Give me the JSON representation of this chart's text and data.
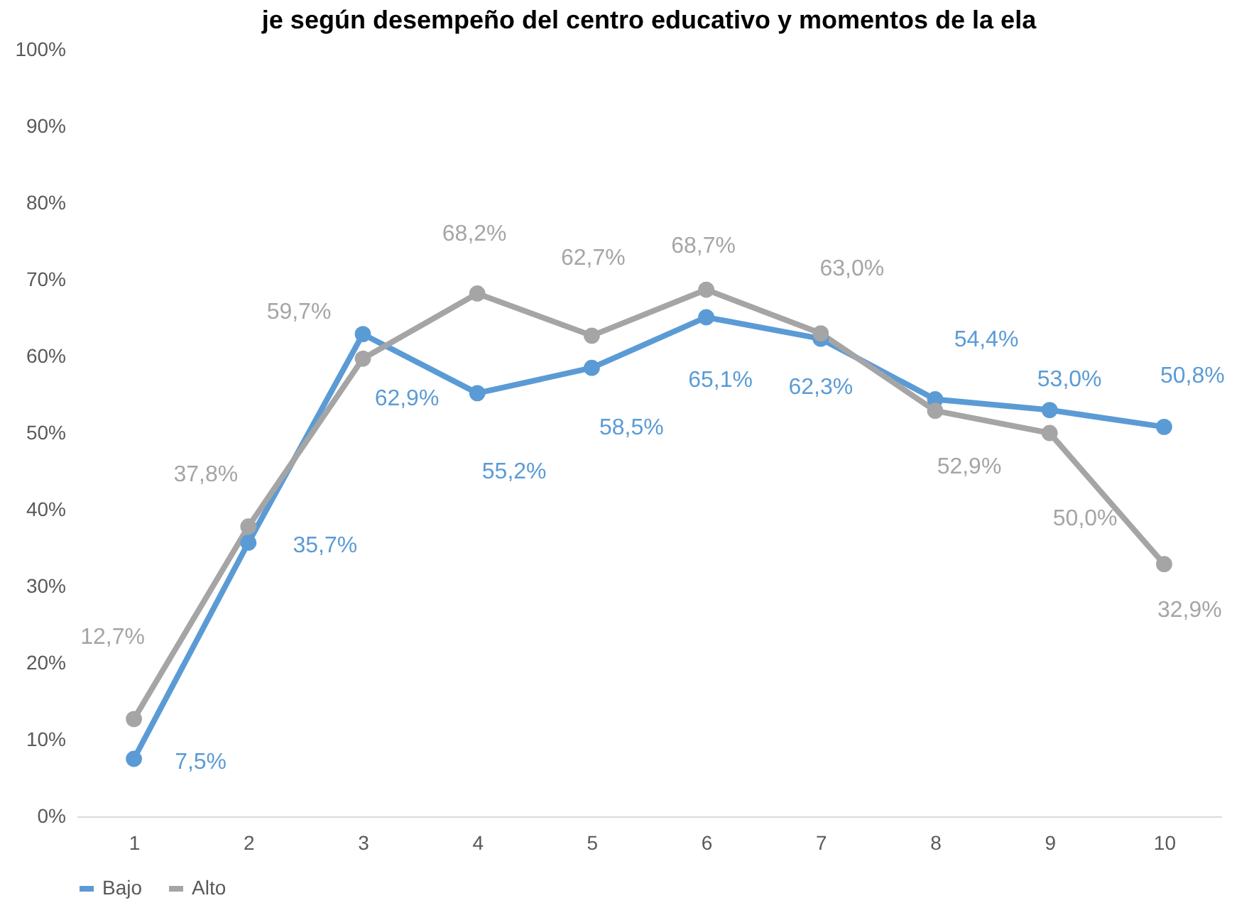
{
  "chart_data": {
    "type": "line",
    "title": "je según desempeño del centro educativo y momentos de la ela",
    "categories": [
      "1",
      "2",
      "3",
      "4",
      "5",
      "6",
      "7",
      "8",
      "9",
      "10"
    ],
    "series": [
      {
        "name": "Bajo",
        "color": "#5b9bd5",
        "values": [
          7.5,
          35.7,
          62.9,
          55.2,
          58.5,
          65.1,
          62.3,
          54.4,
          53.0,
          50.8
        ],
        "value_labels": [
          "7,5%",
          "35,7%",
          "62,9%",
          "55,2%",
          "58,5%",
          "65,1%",
          "62,3%",
          "54,4%",
          "53,0%",
          "50,8%"
        ]
      },
      {
        "name": "Alto",
        "color": "#a5a5a5",
        "values": [
          12.7,
          37.8,
          59.7,
          68.2,
          62.7,
          68.7,
          63.0,
          52.9,
          50.0,
          32.9
        ],
        "value_labels": [
          "12,7%",
          "37,8%",
          "59,7%",
          "68,2%",
          "62,7%",
          "68,7%",
          "63,0%",
          "52,9%",
          "50,0%",
          "32,9%"
        ]
      }
    ],
    "ylim": [
      0,
      100
    ],
    "yticks": [
      {
        "value": 0,
        "label": "0%"
      },
      {
        "value": 10,
        "label": "10%"
      },
      {
        "value": 20,
        "label": "20%"
      },
      {
        "value": 30,
        "label": "30%"
      },
      {
        "value": 40,
        "label": "40%"
      },
      {
        "value": 50,
        "label": "50%"
      },
      {
        "value": 60,
        "label": "60%"
      },
      {
        "value": 70,
        "label": "70%"
      },
      {
        "value": 80,
        "label": "80%"
      },
      {
        "value": 90,
        "label": "90%"
      },
      {
        "value": 100,
        "label": "100%"
      }
    ],
    "grid": false,
    "legend": "bottom",
    "marker": "circle",
    "line_style": "solid"
  }
}
